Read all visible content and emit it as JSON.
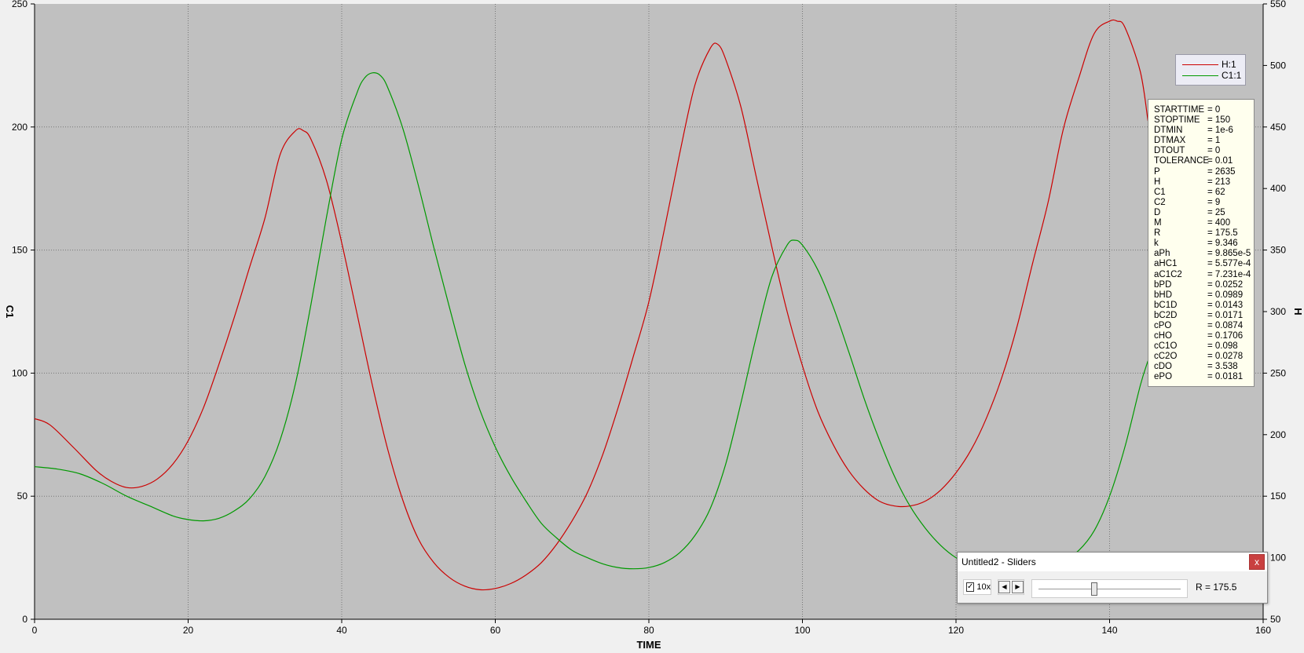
{
  "chart_data": {
    "type": "line",
    "xlabel": "TIME",
    "ylabel_left": "C1",
    "ylabel_right": "H",
    "xlim": [
      0,
      160
    ],
    "ylim_left": [
      0,
      250
    ],
    "ylim_right": [
      50,
      550
    ],
    "x_ticks": [
      0,
      20,
      40,
      60,
      80,
      100,
      120,
      140,
      160
    ],
    "y_ticks_left": [
      0,
      50,
      100,
      150,
      200,
      250
    ],
    "y_ticks_right": [
      50,
      100,
      150,
      200,
      250,
      300,
      350,
      400,
      450,
      500,
      550
    ],
    "grid": true,
    "legend_position": "top-right",
    "series": [
      {
        "name": "H:1",
        "color": "#cc0000",
        "axis": "right",
        "x": [
          0,
          2,
          5,
          8,
          10,
          12,
          14,
          16,
          18,
          20,
          22,
          24,
          26,
          28,
          30,
          32,
          34,
          35,
          36,
          38,
          40,
          42,
          44,
          46,
          48,
          50,
          52,
          54,
          56,
          58,
          60,
          62,
          64,
          66,
          68,
          70,
          72,
          74,
          76,
          78,
          80,
          82,
          84,
          86,
          88,
          89,
          90,
          92,
          94,
          96,
          98,
          100,
          102,
          104,
          106,
          108,
          110,
          112,
          114,
          116,
          118,
          120,
          122,
          124,
          126,
          128,
          130,
          132,
          134,
          136,
          138,
          140,
          141,
          142,
          144,
          145
        ],
        "y": [
          213,
          208,
          190,
          171,
          162,
          157,
          158,
          164,
          176,
          195,
          222,
          257,
          295,
          336,
          376,
          428,
          447,
          447,
          440,
          407,
          356,
          298,
          240,
          188,
          146,
          115,
          96,
          84,
          77,
          74,
          75,
          79,
          86,
          96,
          111,
          130,
          153,
          184,
          222,
          264,
          308,
          366,
          428,
          484,
          514,
          517,
          505,
          466,
          409,
          353,
          300,
          256,
          219,
          192,
          171,
          156,
          146,
          142,
          142,
          146,
          155,
          169,
          188,
          214,
          247,
          289,
          340,
          389,
          449,
          490,
          526,
          536,
          536,
          531,
          495,
          455
        ]
      },
      {
        "name": "C1:1",
        "color": "#009900",
        "axis": "left",
        "x": [
          0,
          3,
          6,
          9,
          12,
          15,
          18,
          20,
          22,
          24,
          26,
          28,
          30,
          32,
          34,
          36,
          38,
          40,
          42,
          43,
          44,
          45,
          46,
          48,
          50,
          52,
          54,
          56,
          58,
          60,
          62,
          64,
          66,
          68,
          70,
          72,
          74,
          76,
          78,
          80,
          82,
          84,
          86,
          88,
          90,
          92,
          94,
          96,
          98,
          99,
          100,
          102,
          104,
          106,
          108,
          110,
          112,
          114,
          116,
          118,
          120,
          122,
          124,
          126,
          128,
          130,
          132,
          134,
          136,
          138,
          140,
          142,
          144,
          145
        ],
        "y": [
          62,
          61,
          59,
          55,
          50,
          46,
          42,
          40.5,
          40,
          41,
          44,
          49,
          58,
          73,
          96,
          128,
          163,
          195,
          214,
          220,
          222,
          221,
          216,
          199,
          176,
          151,
          127,
          104,
          85,
          70,
          58,
          48,
          39,
          33,
          28,
          25,
          22.5,
          21,
          20.5,
          21,
          23,
          27,
          34,
          45,
          63,
          88,
          115,
          139,
          152,
          154,
          152,
          142,
          127,
          109,
          90,
          73,
          58,
          46,
          37,
          30,
          25,
          22,
          21,
          20.5,
          20,
          20,
          21.5,
          24,
          28,
          36,
          50,
          70,
          95,
          105
        ]
      }
    ]
  },
  "legend": [
    {
      "label": "H:1",
      "color": "#cc0000"
    },
    {
      "label": "C1:1",
      "color": "#009900"
    }
  ],
  "parameters": [
    {
      "name": "STARTTIME",
      "value": "= 0"
    },
    {
      "name": "STOPTIME",
      "value": "= 150"
    },
    {
      "name": "DTMIN",
      "value": "= 1e-6"
    },
    {
      "name": "DTMAX",
      "value": "= 1"
    },
    {
      "name": "DTOUT",
      "value": "= 0"
    },
    {
      "name": "TOLERANCE",
      "value": "= 0.01"
    },
    {
      "name": "P",
      "value": "= 2635"
    },
    {
      "name": "H",
      "value": "= 213"
    },
    {
      "name": "C1",
      "value": "= 62"
    },
    {
      "name": "C2",
      "value": "= 9"
    },
    {
      "name": "D",
      "value": "= 25"
    },
    {
      "name": "M",
      "value": "= 400"
    },
    {
      "name": "R",
      "value": "= 175.5"
    },
    {
      "name": "k",
      "value": "= 9.346"
    },
    {
      "name": "aPh",
      "value": "= 9.865e-5"
    },
    {
      "name": "aHC1",
      "value": "= 5.577e-4"
    },
    {
      "name": "aC1C2",
      "value": "= 7.231e-4"
    },
    {
      "name": "bPD",
      "value": "= 0.0252"
    },
    {
      "name": "bHD",
      "value": "= 0.0989"
    },
    {
      "name": "bC1D",
      "value": "= 0.0143"
    },
    {
      "name": "bC2D",
      "value": "= 0.0171"
    },
    {
      "name": "cPO",
      "value": "= 0.0874"
    },
    {
      "name": "cHO",
      "value": "= 0.1706"
    },
    {
      "name": "cC1O",
      "value": "= 0.098"
    },
    {
      "name": "cC2O",
      "value": "= 0.0278"
    },
    {
      "name": "cDO",
      "value": "= 3.538"
    },
    {
      "name": "ePO",
      "value": "= 0.0181"
    }
  ],
  "slider_window": {
    "title": "Untitled2 - Sliders",
    "close_label": "x",
    "checkbox_checked": true,
    "checkbox_mark": "✓",
    "multiplier_label": "10x",
    "step_left": "◀",
    "step_right": "▶",
    "slider_fraction": 0.39,
    "readout": "R = 175.5"
  },
  "colors": {
    "plot_background": "#c0c0c0",
    "grid": "#777777"
  }
}
